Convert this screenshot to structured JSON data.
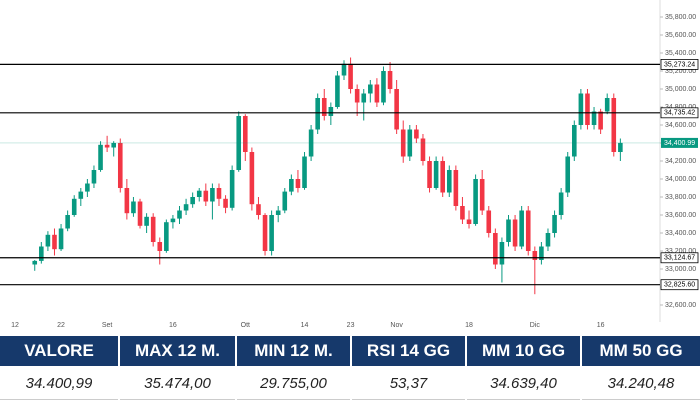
{
  "chart_data": {
    "type": "candlestick",
    "categories": [
      "12",
      null,
      null,
      null,
      null,
      null,
      null,
      "22",
      null,
      null,
      null,
      null,
      null,
      null,
      "Set",
      null,
      null,
      null,
      null,
      null,
      null,
      null,
      null,
      null,
      "16",
      null,
      null,
      null,
      null,
      null,
      null,
      null,
      null,
      null,
      null,
      "Ott",
      null,
      null,
      null,
      null,
      null,
      null,
      null,
      null,
      "14",
      null,
      null,
      null,
      null,
      null,
      null,
      "23",
      null,
      null,
      null,
      null,
      null,
      null,
      "Nov",
      null,
      null,
      null,
      null,
      null,
      null,
      null,
      null,
      null,
      null,
      "18",
      null,
      null,
      null,
      null,
      null,
      null,
      null,
      null,
      null,
      "Dic",
      null,
      null,
      null,
      null,
      null,
      null,
      null,
      null,
      null,
      "16",
      null,
      null,
      null
    ],
    "open": [
      null,
      null,
      null,
      33050,
      33090,
      33250,
      33380,
      33220,
      33450,
      33600,
      33780,
      33860,
      33950,
      34100,
      34380,
      34350,
      34400,
      33900,
      33620,
      33750,
      33480,
      33580,
      33300,
      33200,
      33520,
      33560,
      33650,
      33720,
      33800,
      33870,
      33750,
      33900,
      33780,
      33680,
      34100,
      34700,
      34300,
      33720,
      33600,
      33200,
      33600,
      33650,
      33860,
      34000,
      33900,
      34250,
      34550,
      34900,
      34700,
      34800,
      35150,
      35280,
      35000,
      34850,
      34950,
      35050,
      34850,
      35200,
      35000,
      34550,
      34250,
      34550,
      34450,
      34200,
      33900,
      34200,
      33850,
      34100,
      33700,
      33550,
      33500,
      34000,
      33650,
      33400,
      33050,
      33300,
      33550,
      33250,
      33650,
      33200,
      33100,
      33250,
      33400,
      33600,
      33850,
      34250,
      34600,
      34950,
      34600,
      34750,
      34750,
      34900,
      34300
    ],
    "high": [
      null,
      null,
      null,
      33100,
      33300,
      33420,
      33450,
      33500,
      33650,
      33820,
      33900,
      34000,
      34150,
      34420,
      34480,
      34420,
      34450,
      34000,
      33800,
      33780,
      33620,
      33620,
      33350,
      33550,
      33600,
      33700,
      33780,
      33850,
      33900,
      33950,
      33950,
      33950,
      33820,
      34150,
      34750,
      34720,
      34350,
      33800,
      33620,
      33650,
      33700,
      33900,
      34050,
      34100,
      34300,
      34600,
      34950,
      35000,
      34850,
      35200,
      35320,
      35350,
      35050,
      35000,
      35100,
      35120,
      35250,
      35300,
      35100,
      34650,
      34600,
      34600,
      34500,
      34250,
      34250,
      34250,
      34150,
      34150,
      33800,
      33650,
      34050,
      34100,
      33700,
      33450,
      33350,
      33600,
      33600,
      33700,
      33700,
      33250,
      33300,
      33450,
      33650,
      33900,
      34300,
      34650,
      35000,
      35000,
      34800,
      34780,
      34950,
      34950,
      34450
    ],
    "low": [
      null,
      null,
      null,
      32980,
      33060,
      33200,
      33150,
      33200,
      33420,
      33580,
      33700,
      33800,
      33900,
      34080,
      34300,
      34250,
      33850,
      33550,
      33580,
      33450,
      33400,
      33250,
      33050,
      33180,
      33450,
      33500,
      33600,
      33680,
      33750,
      33700,
      33550,
      33700,
      33620,
      33650,
      34080,
      34200,
      33650,
      33550,
      33150,
      33150,
      33520,
      33620,
      33820,
      33850,
      33880,
      34200,
      34500,
      34650,
      34600,
      34780,
      35100,
      34950,
      34700,
      34650,
      34850,
      34800,
      34820,
      34950,
      34500,
      34180,
      34200,
      34400,
      34150,
      33850,
      33880,
      33800,
      33800,
      33650,
      33500,
      33450,
      33480,
      33600,
      33350,
      33000,
      32850,
      33250,
      33200,
      33220,
      33150,
      32720,
      33050,
      33200,
      33350,
      33550,
      33800,
      34200,
      34550,
      34550,
      34550,
      34500,
      34720,
      34250,
      34200
    ],
    "close": [
      null,
      null,
      null,
      33090,
      33250,
      33380,
      33220,
      33450,
      33600,
      33780,
      33860,
      33950,
      34100,
      34380,
      34350,
      34400,
      33900,
      33620,
      33750,
      33480,
      33580,
      33300,
      33200,
      33520,
      33560,
      33650,
      33720,
      33800,
      33870,
      33750,
      33900,
      33780,
      33680,
      34100,
      34700,
      34300,
      33720,
      33600,
      33200,
      33600,
      33650,
      33860,
      34000,
      33900,
      34250,
      34550,
      34900,
      34700,
      34800,
      35150,
      35280,
      35000,
      34850,
      34950,
      35050,
      34850,
      35200,
      35000,
      34550,
      34250,
      34550,
      34450,
      34200,
      33900,
      34200,
      33850,
      34100,
      33700,
      33550,
      33500,
      34000,
      33650,
      33400,
      33050,
      33300,
      33550,
      33250,
      33650,
      33200,
      33100,
      33250,
      33400,
      33600,
      33850,
      34250,
      34600,
      34950,
      34600,
      34750,
      34550,
      34900,
      34300,
      34400.99
    ],
    "up_color": "#089981",
    "down_color": "#f23645",
    "ylim": [
      32300,
      35950
    ],
    "yticks": [
      {
        "value": 32600,
        "label": "32,600.00"
      },
      {
        "value": 32800,
        "label": "32,800.00"
      },
      {
        "value": 33000,
        "label": "33,000.00"
      },
      {
        "value": 33200,
        "label": "33,200.00"
      },
      {
        "value": 33400,
        "label": "33,400.00"
      },
      {
        "value": 33600,
        "label": "33,600.00"
      },
      {
        "value": 33800,
        "label": "33,800.00"
      },
      {
        "value": 34000,
        "label": "34,000.00"
      },
      {
        "value": 34200,
        "label": "34,200.00"
      },
      {
        "value": 34400,
        "label": "34,400.00"
      },
      {
        "value": 34600,
        "label": "34,600.00"
      },
      {
        "value": 34800,
        "label": "34,800.00"
      },
      {
        "value": 35000,
        "label": "35,000.00"
      },
      {
        "value": 35200,
        "label": "35,200.00"
      },
      {
        "value": 35400,
        "label": "35,400.00"
      },
      {
        "value": 35600,
        "label": "35,600.00"
      },
      {
        "value": 35800,
        "label": "35,800.00"
      }
    ],
    "levels": [
      {
        "value": 35273.24,
        "label": "35,273.24"
      },
      {
        "value": 34735.42,
        "label": "34,735.42"
      },
      {
        "value": 33124.67,
        "label": "33,124.67"
      },
      {
        "value": 32825.6,
        "label": "32,825.60"
      }
    ],
    "last_price": {
      "value": 34400.99,
      "label": "34,400.99",
      "color": "#089981"
    }
  },
  "table": {
    "headers": [
      "VALORE",
      "MAX 12 M.",
      "MIN 12 M.",
      "RSI 14 GG",
      "MM 10 GG",
      "MM 50 GG"
    ],
    "rows": [
      [
        "34.400,99",
        "35.474,00",
        "29.755,00",
        "53,37",
        "34.639,40",
        "34.240,48"
      ]
    ]
  }
}
